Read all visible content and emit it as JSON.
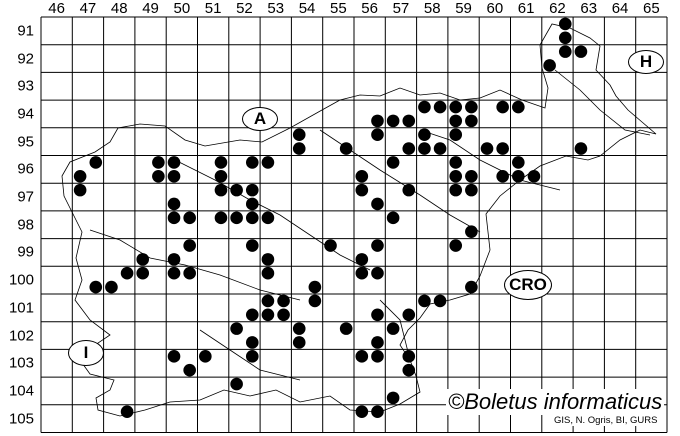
{
  "map": {
    "column_labels": [
      "46",
      "47",
      "48",
      "49",
      "50",
      "51",
      "52",
      "53",
      "54",
      "55",
      "56",
      "57",
      "58",
      "59",
      "60",
      "61",
      "62",
      "63",
      "64",
      "65"
    ],
    "row_labels": [
      "91",
      "92",
      "93",
      "94",
      "95",
      "96",
      "97",
      "98",
      "99",
      "100",
      "101",
      "102",
      "103",
      "104",
      "105"
    ],
    "country_labels": {
      "austria": "A",
      "hungary": "H",
      "croatia": "CRO",
      "italy": "I"
    },
    "copyright": "©Boletus informaticus",
    "source": "GIS, N. Ogris, BI, GURS",
    "dot_color": "#000000",
    "records": [
      [
        62.75,
        91.25
      ],
      [
        62.75,
        91.75
      ],
      [
        62.75,
        92.25
      ],
      [
        63.25,
        92.25
      ],
      [
        62.25,
        92.75
      ],
      [
        58.25,
        94.25
      ],
      [
        58.75,
        94.25
      ],
      [
        59.25,
        94.25
      ],
      [
        59.75,
        94.25
      ],
      [
        60.75,
        94.25
      ],
      [
        61.25,
        94.25
      ],
      [
        56.75,
        94.75
      ],
      [
        57.25,
        94.75
      ],
      [
        57.75,
        94.75
      ],
      [
        59.25,
        94.75
      ],
      [
        59.75,
        94.75
      ],
      [
        54.25,
        95.25
      ],
      [
        56.75,
        95.25
      ],
      [
        58.25,
        95.25
      ],
      [
        59.25,
        95.25
      ],
      [
        54.25,
        95.75
      ],
      [
        55.75,
        95.75
      ],
      [
        57.75,
        95.75
      ],
      [
        58.25,
        95.75
      ],
      [
        58.75,
        95.75
      ],
      [
        60.25,
        95.75
      ],
      [
        60.75,
        95.75
      ],
      [
        63.25,
        95.75
      ],
      [
        47.75,
        96.25
      ],
      [
        49.75,
        96.25
      ],
      [
        50.25,
        96.25
      ],
      [
        51.75,
        96.25
      ],
      [
        52.75,
        96.25
      ],
      [
        53.25,
        96.25
      ],
      [
        57.25,
        96.25
      ],
      [
        59.25,
        96.25
      ],
      [
        61.25,
        96.25
      ],
      [
        47.25,
        96.75
      ],
      [
        49.75,
        96.75
      ],
      [
        50.25,
        96.75
      ],
      [
        51.75,
        96.75
      ],
      [
        56.25,
        96.75
      ],
      [
        59.25,
        96.75
      ],
      [
        59.75,
        96.75
      ],
      [
        60.75,
        96.75
      ],
      [
        61.25,
        96.75
      ],
      [
        61.75,
        96.75
      ],
      [
        47.25,
        97.25
      ],
      [
        51.75,
        97.25
      ],
      [
        52.25,
        97.25
      ],
      [
        52.75,
        97.25
      ],
      [
        56.25,
        97.25
      ],
      [
        57.75,
        97.25
      ],
      [
        59.25,
        97.25
      ],
      [
        59.75,
        97.25
      ],
      [
        50.25,
        97.75
      ],
      [
        52.75,
        97.75
      ],
      [
        56.75,
        97.75
      ],
      [
        50.25,
        98.25
      ],
      [
        50.75,
        98.25
      ],
      [
        51.75,
        98.25
      ],
      [
        52.25,
        98.25
      ],
      [
        52.75,
        98.25
      ],
      [
        53.25,
        98.25
      ],
      [
        57.25,
        98.25
      ],
      [
        59.75,
        98.75
      ],
      [
        50.75,
        99.25
      ],
      [
        52.75,
        99.25
      ],
      [
        55.25,
        99.25
      ],
      [
        56.75,
        99.25
      ],
      [
        59.25,
        99.25
      ],
      [
        49.25,
        99.75
      ],
      [
        50.25,
        99.75
      ],
      [
        53.25,
        99.75
      ],
      [
        56.25,
        99.75
      ],
      [
        48.75,
        100.25
      ],
      [
        49.25,
        100.25
      ],
      [
        50.25,
        100.25
      ],
      [
        50.75,
        100.25
      ],
      [
        53.25,
        100.25
      ],
      [
        56.25,
        100.25
      ],
      [
        56.75,
        100.25
      ],
      [
        47.75,
        100.75
      ],
      [
        48.25,
        100.75
      ],
      [
        54.75,
        100.75
      ],
      [
        59.75,
        100.75
      ],
      [
        53.25,
        101.25
      ],
      [
        53.75,
        101.25
      ],
      [
        54.75,
        101.25
      ],
      [
        58.25,
        101.25
      ],
      [
        58.75,
        101.25
      ],
      [
        52.75,
        101.75
      ],
      [
        53.25,
        101.75
      ],
      [
        53.75,
        101.75
      ],
      [
        56.75,
        101.75
      ],
      [
        57.75,
        101.75
      ],
      [
        52.25,
        102.25
      ],
      [
        54.25,
        102.25
      ],
      [
        55.75,
        102.25
      ],
      [
        57.25,
        102.25
      ],
      [
        52.75,
        102.75
      ],
      [
        54.25,
        102.75
      ],
      [
        56.75,
        102.75
      ],
      [
        50.25,
        103.25
      ],
      [
        51.25,
        103.25
      ],
      [
        52.75,
        103.25
      ],
      [
        56.25,
        103.25
      ],
      [
        56.75,
        103.25
      ],
      [
        57.75,
        103.25
      ],
      [
        50.75,
        103.75
      ],
      [
        57.75,
        103.75
      ],
      [
        52.25,
        104.25
      ],
      [
        57.25,
        104.75
      ],
      [
        48.75,
        105.25
      ],
      [
        56.25,
        105.25
      ],
      [
        56.75,
        105.25
      ]
    ]
  }
}
